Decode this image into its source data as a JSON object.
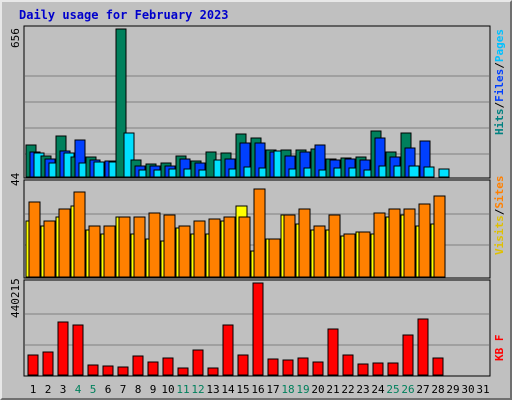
{
  "chart_data": {
    "type": "bar",
    "title": "Daily usage for February 2023",
    "days": [
      "1",
      "2",
      "3",
      "4",
      "5",
      "6",
      "7",
      "8",
      "9",
      "10",
      "11",
      "12",
      "13",
      "14",
      "15",
      "16",
      "17",
      "18",
      "19",
      "20",
      "21",
      "22",
      "23",
      "24",
      "25",
      "26",
      "27",
      "28",
      "29",
      "30",
      "31"
    ],
    "weekend_days": [
      "4",
      "5",
      "11",
      "12",
      "18",
      "19",
      "25",
      "26"
    ],
    "panels": [
      {
        "name": "hits",
        "max_label": "656",
        "ymax": 656,
        "legend": [
          {
            "text": "Hits",
            "color": "#008080"
          },
          {
            "text": "/",
            "color": "#000000"
          },
          {
            "text": "Files",
            "color": "#0040ff"
          },
          {
            "text": "/",
            "color": "#000000"
          },
          {
            "text": "Pages",
            "color": "#00c0ff"
          }
        ],
        "series": [
          {
            "name": "Hits",
            "color": "#00805c",
            "values": [
              140,
              95,
              180,
              90,
              90,
              0,
              656,
              75,
              57,
              60,
              95,
              70,
              110,
              105,
              190,
              175,
              120,
              120,
              120,
              125,
              80,
              85,
              90,
              205,
              110,
              195,
              0,
              0,
              0,
              0,
              0
            ]
          },
          {
            "name": "Files",
            "color": "#0040ff",
            "values": [
              110,
              80,
              115,
              165,
              75,
              70,
              0,
              50,
              50,
              50,
              80,
              60,
              0,
              80,
              150,
              150,
              110,
              95,
              110,
              140,
              75,
              80,
              75,
              175,
              90,
              130,
              160,
              0,
              0,
              0,
              0
            ]
          },
          {
            "name": "Pages",
            "color": "#00e0ff",
            "values": [
              105,
              60,
              105,
              60,
              65,
              65,
              195,
              30,
              30,
              35,
              35,
              30,
              75,
              35,
              45,
              40,
              115,
              35,
              40,
              30,
              40,
              40,
              30,
              50,
              50,
              50,
              45,
              35,
              0,
              0,
              0
            ]
          }
        ]
      },
      {
        "name": "visits",
        "max_label": "44",
        "ymax": 44,
        "legend": [
          {
            "text": "Visits",
            "color": "#e0c000"
          },
          {
            "text": "/",
            "color": "#000000"
          },
          {
            "text": "Sites",
            "color": "#ff8000"
          }
        ],
        "series": [
          {
            "name": "Visits",
            "color": "#ffff00",
            "values": [
              26,
              24,
              28,
              33,
              22,
              20,
              28,
              20,
              18,
              17,
              23,
              20,
              20,
              26,
              33,
              12,
              18,
              29,
              25,
              22,
              22,
              19,
              21,
              20,
              28,
              29,
              24,
              25,
              0,
              0,
              0
            ]
          },
          {
            "name": "Sites",
            "color": "#ff8000",
            "values": [
              35,
              26,
              32,
              40,
              24,
              24,
              28,
              28,
              30,
              29,
              24,
              26,
              27,
              28,
              28,
              41,
              18,
              29,
              32,
              24,
              29,
              20,
              21,
              30,
              32,
              32,
              34,
              38,
              0,
              0,
              0
            ]
          }
        ]
      },
      {
        "name": "kbytes",
        "max_label": "440215",
        "ymax": 440215,
        "legend": [
          {
            "text": "KB F",
            "color": "#ff0000"
          }
        ],
        "series": [
          {
            "name": "KB F",
            "color": "#ff0000",
            "values": [
              97000,
              112000,
              253000,
              238000,
              46000,
              43000,
              38000,
              93000,
              63000,
              80000,
              32000,
              120000,
              33000,
              241000,
              97000,
              440215,
              78000,
              72000,
              79000,
              63000,
              222000,
              95000,
              55000,
              57000,
              57000,
              193000,
              270000,
              80000,
              0,
              0,
              0
            ]
          }
        ]
      }
    ]
  }
}
